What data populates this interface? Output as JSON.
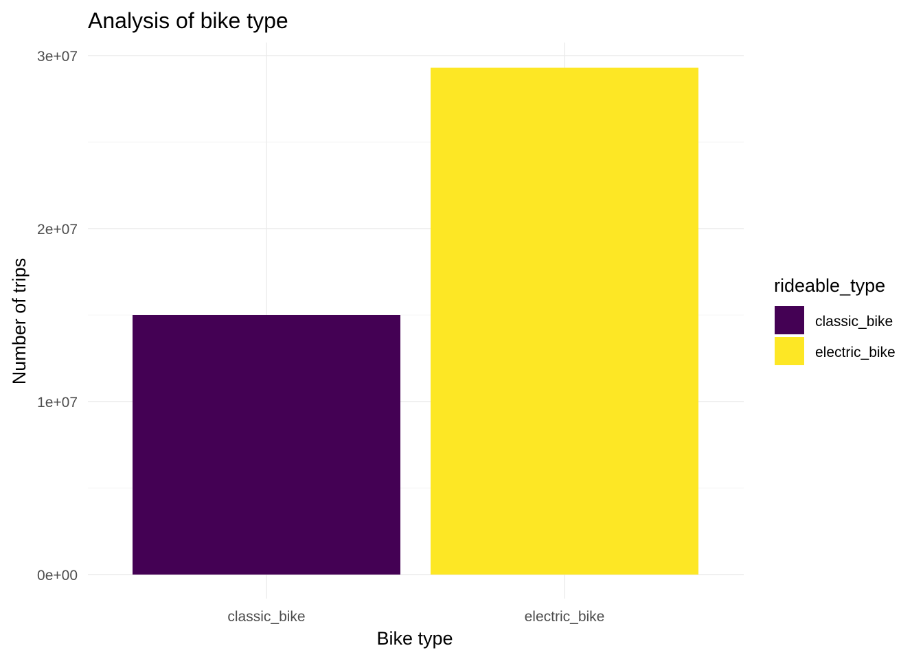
{
  "chart_data": {
    "type": "bar",
    "title": "Analysis of bike type",
    "xlabel": "Bike type",
    "ylabel": "Number of trips",
    "categories": [
      "classic_bike",
      "electric_bike"
    ],
    "values": [
      15000000,
      29300000
    ],
    "colors": [
      "#440154",
      "#FDE725"
    ],
    "ylim": [
      0,
      30000000
    ],
    "yticks": [
      {
        "value": 0,
        "label": "0e+00"
      },
      {
        "value": 10000000,
        "label": "1e+07"
      },
      {
        "value": 20000000,
        "label": "2e+07"
      },
      {
        "value": 30000000,
        "label": "3e+07"
      }
    ],
    "grid": true,
    "legend": {
      "title": "rideable_type",
      "position": "right",
      "entries": [
        "classic_bike",
        "electric_bike"
      ]
    }
  }
}
